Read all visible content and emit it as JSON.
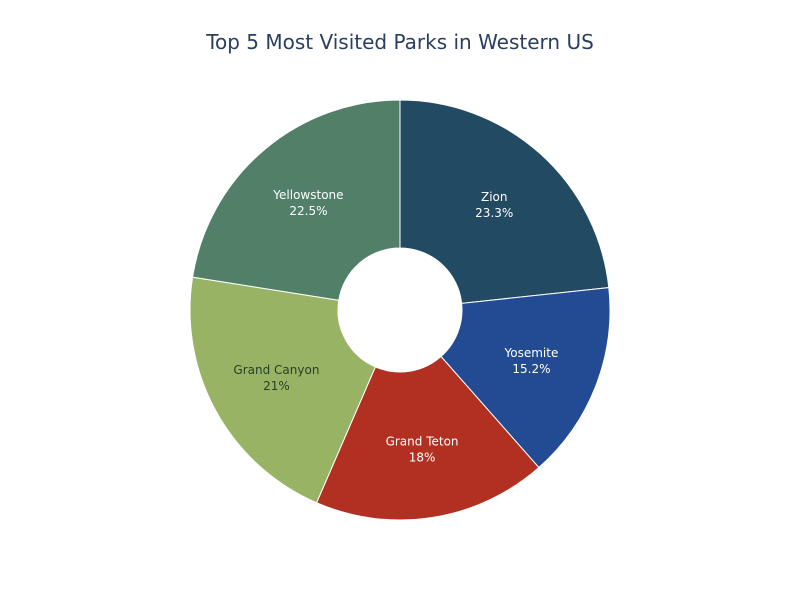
{
  "chart_data": {
    "type": "pie",
    "title": "Top 5 Most Visited Parks in Western US",
    "hole": true,
    "slices": [
      {
        "label": "Zion",
        "value": 23.3,
        "percent_label": "23.3%",
        "color": "#224a63",
        "text_color": "#ffffff"
      },
      {
        "label": "Yosemite",
        "value": 15.2,
        "percent_label": "15.2%",
        "color": "#234b93",
        "text_color": "#ffffff"
      },
      {
        "label": "Grand Teton",
        "value": 18.0,
        "percent_label": "18%",
        "color": "#b13022",
        "text_color": "#ffffff"
      },
      {
        "label": "Grand Canyon",
        "value": 21.0,
        "percent_label": "21%",
        "color": "#99b364",
        "text_color": "#2a3f2a"
      },
      {
        "label": "Yellowstone",
        "value": 22.5,
        "percent_label": "22.5%",
        "color": "#517f68",
        "text_color": "#ffffff"
      }
    ]
  }
}
